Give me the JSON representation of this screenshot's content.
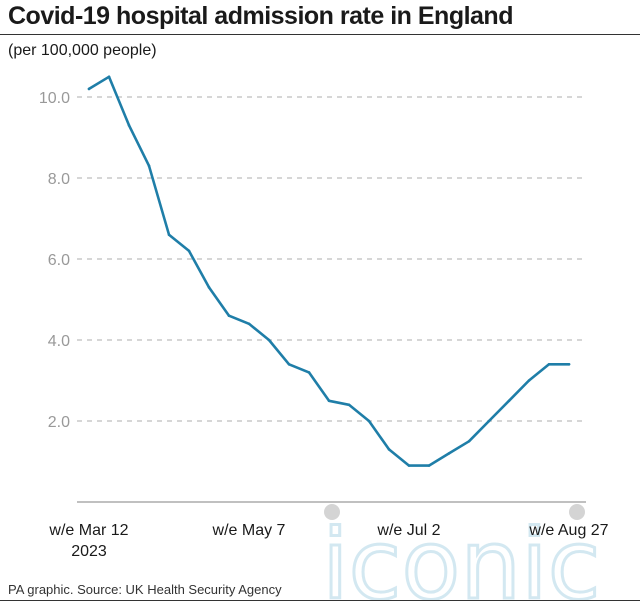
{
  "title": "Covid-19 hospital admission rate in England",
  "subtitle": "(per 100,000 people)",
  "source": "PA graphic. Source: UK Health Security Agency",
  "watermark": "iconic",
  "colors": {
    "line": "#1f7ea8",
    "grid": "#bdbdbd",
    "axis": "#9a9a9a",
    "tick": "#999999",
    "text": "#1a1a1a"
  },
  "chart_data": {
    "type": "line",
    "title": "Covid-19 hospital admission rate in England",
    "ylabel": "(per 100,000 people)",
    "xlabel": "",
    "ylim": [
      0,
      10.5
    ],
    "grid": true,
    "y_ticks": [
      {
        "value": 2,
        "label": "2.0"
      },
      {
        "value": 4,
        "label": "4.0"
      },
      {
        "value": 6,
        "label": "6.0"
      },
      {
        "value": 8,
        "label": "8.0"
      },
      {
        "value": 10,
        "label": "10.0"
      }
    ],
    "x_ticks": [
      {
        "index": 0,
        "lines": [
          "w/e Mar 12",
          "2023"
        ]
      },
      {
        "index": 8,
        "lines": [
          "w/e May 7"
        ]
      },
      {
        "index": 16,
        "lines": [
          "w/e Jul 2"
        ]
      },
      {
        "index": 24,
        "lines": [
          "w/e Aug 27"
        ]
      }
    ],
    "x": [
      "2023-03-12",
      "2023-03-19",
      "2023-03-26",
      "2023-04-02",
      "2023-04-09",
      "2023-04-16",
      "2023-04-23",
      "2023-04-30",
      "2023-05-07",
      "2023-05-14",
      "2023-05-21",
      "2023-05-28",
      "2023-06-04",
      "2023-06-11",
      "2023-06-18",
      "2023-06-25",
      "2023-07-02",
      "2023-07-09",
      "2023-07-16",
      "2023-07-23",
      "2023-07-30",
      "2023-08-06",
      "2023-08-13",
      "2023-08-20",
      "2023-08-27"
    ],
    "series": [
      {
        "values": [
          10.2,
          10.5,
          9.3,
          8.3,
          6.6,
          6.2,
          5.3,
          4.6,
          4.4,
          4.0,
          3.4,
          3.2,
          2.5,
          2.4,
          2.0,
          1.3,
          0.9,
          0.9,
          1.2,
          1.5,
          2.0,
          2.5,
          3.0,
          3.4,
          3.4
        ]
      }
    ]
  }
}
